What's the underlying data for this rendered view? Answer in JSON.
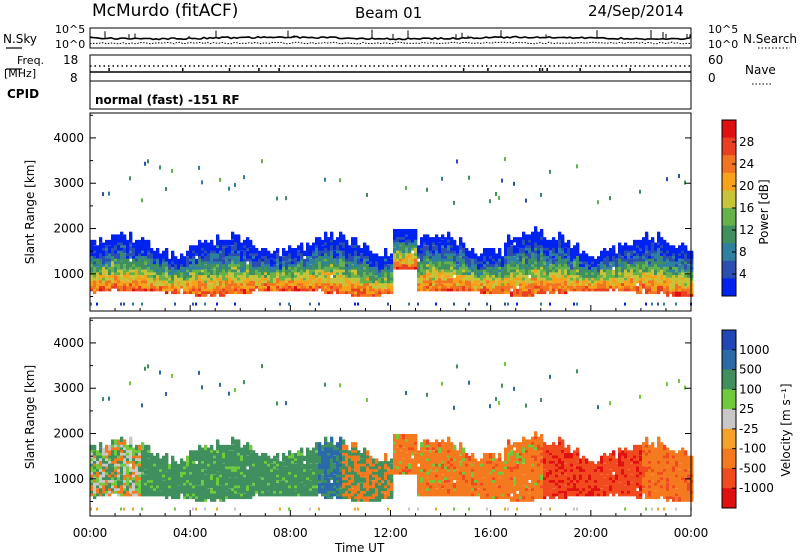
{
  "header": {
    "station": "McMurdo (fitACF)",
    "beam": "Beam 01",
    "date": "24/Sep/2014",
    "mode": "normal (fast) -151 RF"
  },
  "noise_panel": {
    "left_label": "N.Sky",
    "right_label": "N.Search",
    "left_ticks": [
      "10^5",
      "10^0"
    ],
    "right_ticks": [
      "10^5",
      "10^0"
    ]
  },
  "freq_panel": {
    "left_label_top": "Freq.",
    "left_label_bottom": "[MHz]",
    "cpid_label": "CPID",
    "left_ticks": [
      "18",
      "8"
    ],
    "right_label": "Nave",
    "right_ticks": [
      "60",
      "0"
    ]
  },
  "colors": {
    "power": [
      "#0022ee",
      "#2a4fb0",
      "#2f7fa0",
      "#3f8f5f",
      "#66b24a",
      "#c8c43a",
      "#f7a21a",
      "#f27420",
      "#ea4020",
      "#e01010"
    ],
    "velocity": [
      "#e01010",
      "#f04a1e",
      "#f57a1f",
      "#f5a12a",
      "#c8c8c8",
      "#6fca3c",
      "#3f8f5f",
      "#2a6aa8",
      "#2046b8"
    ]
  },
  "chart_data": [
    {
      "type": "heatmap",
      "title": "",
      "xlabel": "",
      "ylabel": "Slant Range [km]",
      "xlim": [
        "00:00",
        "24:00"
      ],
      "ylim": [
        180,
        4550
      ],
      "y_ticks": [
        "1000",
        "2000",
        "3000",
        "4000"
      ],
      "colorbar": {
        "label": "Power [dB]",
        "tick_labels": [
          "4",
          "8",
          "12",
          "16",
          "20",
          "24",
          "28"
        ],
        "range": [
          0,
          30
        ]
      },
      "main_band": {
        "min_range_km": 600,
        "max_range_km": 1800,
        "peak_power_db": 30
      },
      "sparse_echoes_km": [
        2500,
        3500
      ]
    },
    {
      "type": "heatmap",
      "title": "",
      "xlabel": "Time UT",
      "ylabel": "Slant Range [km]",
      "xlim": [
        "00:00",
        "24:00"
      ],
      "ylim": [
        180,
        4550
      ],
      "x_ticks": [
        "00:00",
        "04:00",
        "08:00",
        "12:00",
        "16:00",
        "20:00",
        "00:00"
      ],
      "y_ticks": [
        "1000",
        "2000",
        "3000",
        "4000"
      ],
      "colorbar": {
        "label": "Velocity [m s⁻¹]",
        "tick_labels": [
          "1000",
          "500",
          "100",
          "25",
          "-25",
          "-100",
          "-500",
          "-1000"
        ],
        "range": [
          -1200,
          1200
        ]
      },
      "velocity_by_period": [
        {
          "start": "00:00",
          "end": "02:00",
          "velocity": "mixed"
        },
        {
          "start": "02:00",
          "end": "09:00",
          "velocity": "100 to 500"
        },
        {
          "start": "09:00",
          "end": "10:00",
          "velocity": "500 to 1000"
        },
        {
          "start": "12:00",
          "end": "18:00",
          "velocity": "-100 to -500"
        },
        {
          "start": "18:00",
          "end": "22:00",
          "velocity": "-500 to -1000"
        },
        {
          "start": "22:00",
          "end": "24:00",
          "velocity": "-100 to -500"
        }
      ]
    }
  ]
}
